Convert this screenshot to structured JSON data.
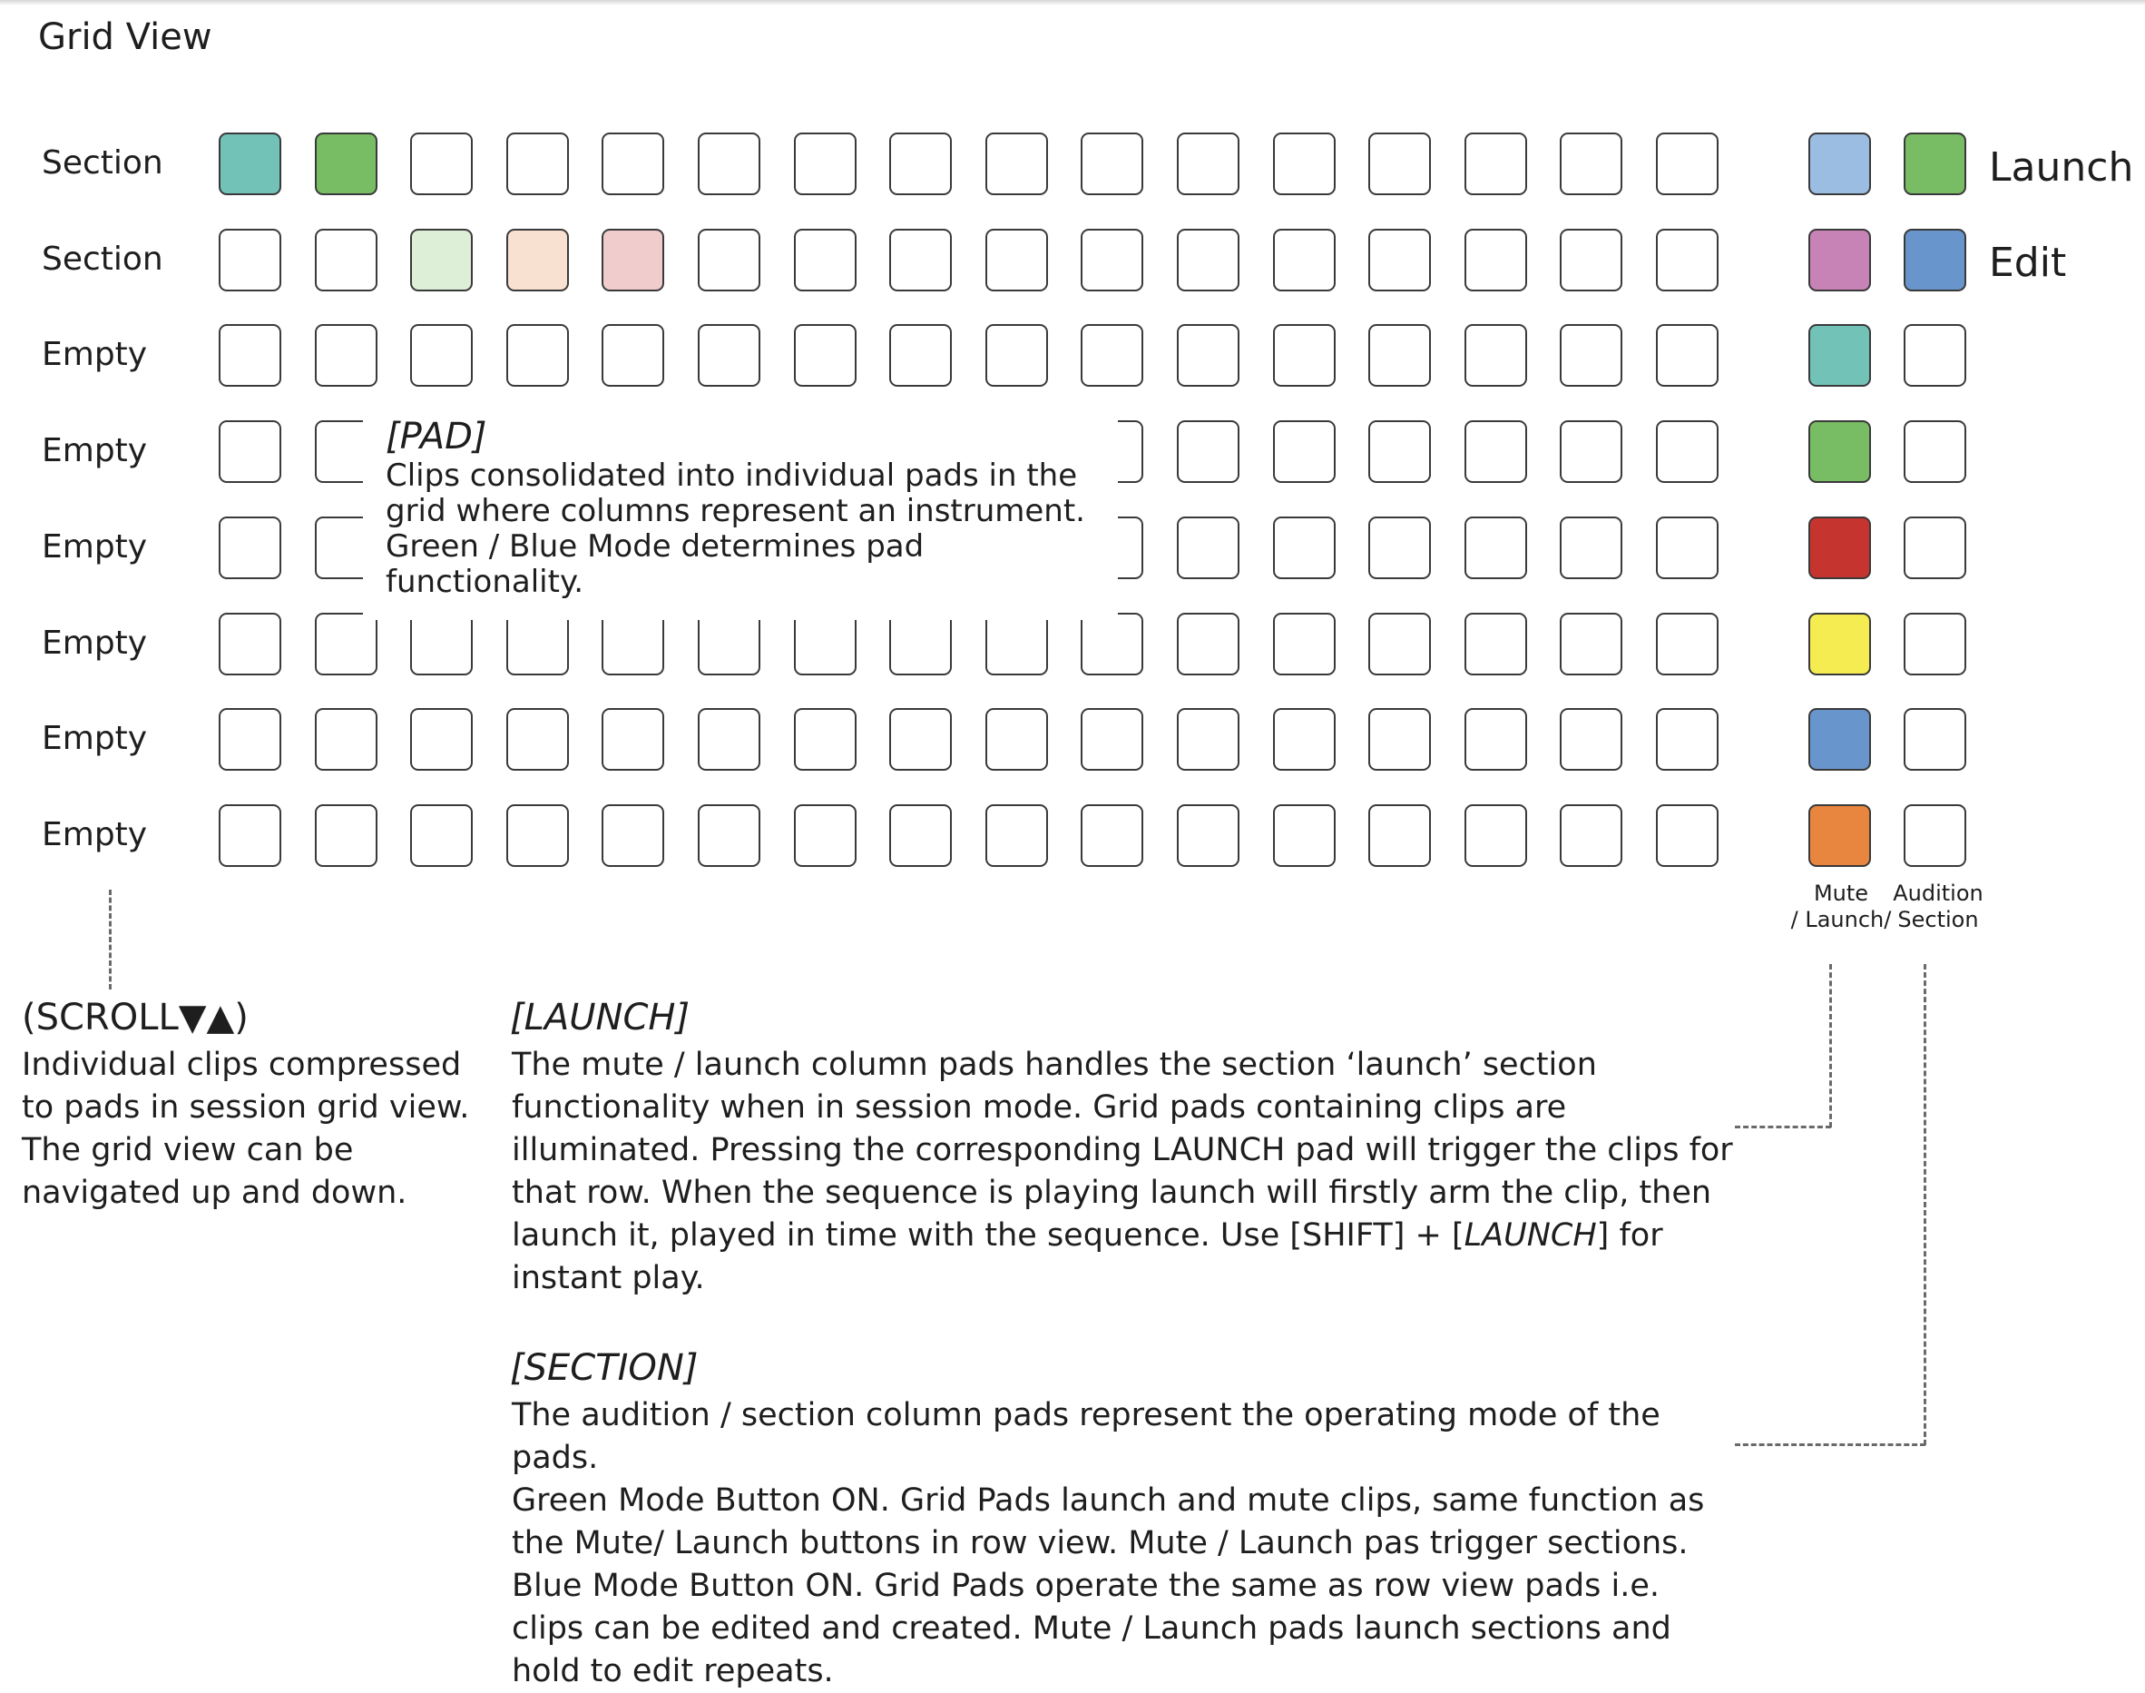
{
  "title": "Grid View",
  "rows": [
    {
      "label": "Section",
      "pads": [
        "#72c2b8",
        "#78bc64",
        "",
        "",
        "",
        "",
        "",
        "",
        "",
        "",
        "",
        "",
        "",
        "",
        "",
        ""
      ],
      "mute_launch": "#9bbde2",
      "audition_section": "#78bc64"
    },
    {
      "label": "Section",
      "pads": [
        "",
        "",
        "#deefd8",
        "#f9e1d2",
        "#f1cccd",
        "",
        "",
        "",
        "",
        "",
        "",
        "",
        "",
        "",
        "",
        ""
      ],
      "mute_launch": "#c783b5",
      "audition_section": "#6795cc"
    },
    {
      "label": "Empty",
      "pads": [
        "",
        "",
        "",
        "",
        "",
        "",
        "",
        "",
        "",
        "",
        "",
        "",
        "",
        "",
        "",
        ""
      ],
      "mute_launch": "#72c2b8",
      "audition_section": ""
    },
    {
      "label": "Empty",
      "pads": [
        "",
        "",
        "",
        "",
        "",
        "",
        "",
        "",
        "",
        "",
        "",
        "",
        "",
        "",
        "",
        ""
      ],
      "mute_launch": "#78bc64",
      "audition_section": ""
    },
    {
      "label": "Empty",
      "pads": [
        "",
        "",
        "",
        "",
        "",
        "",
        "",
        "",
        "",
        "",
        "",
        "",
        "",
        "",
        "",
        ""
      ],
      "mute_launch": "#c6342f",
      "audition_section": ""
    },
    {
      "label": "Empty",
      "pads": [
        "",
        "",
        "",
        "",
        "",
        "",
        "",
        "",
        "",
        "",
        "",
        "",
        "",
        "",
        "",
        ""
      ],
      "mute_launch": "#f5ec51",
      "audition_section": ""
    },
    {
      "label": "Empty",
      "pads": [
        "",
        "",
        "",
        "",
        "",
        "",
        "",
        "",
        "",
        "",
        "",
        "",
        "",
        "",
        "",
        ""
      ],
      "mute_launch": "#6795cc",
      "audition_section": ""
    },
    {
      "label": "Empty",
      "pads": [
        "",
        "",
        "",
        "",
        "",
        "",
        "",
        "",
        "",
        "",
        "",
        "",
        "",
        "",
        "",
        ""
      ],
      "mute_launch": "#e8853f",
      "audition_section": ""
    }
  ],
  "side_labels": {
    "launch": "Launch",
    "edit": "Edit"
  },
  "column_labels": {
    "mute_launch": [
      "Mute",
      "/ Launch/"
    ],
    "audition_section": [
      "Audition",
      "Section"
    ]
  },
  "pad_callout": {
    "heading": "[PAD]",
    "body": "Clips consolidated into individual pads in the grid where columns represent an instrument. Green / Blue Mode determines pad functionality."
  },
  "scroll_note": {
    "heading": "(SCROLL▼▲)",
    "body": "Individual clips compressed to pads in session grid view. The grid view can be navigated up and down."
  },
  "launch_note": {
    "heading": "[LAUNCH]",
    "body_pre": "The mute / launch column pads handles the section ‘launch’ section functionality when in session mode. Grid pads containing clips are illuminated. Pressing the corresponding LAUNCH pad will trigger the clips for that row. When the sequence is playing launch will firstly arm the clip, then launch it, played in time with the sequence. Use [SHIFT] + [",
    "body_em": "LAUNCH",
    "body_post": "] for instant play."
  },
  "section_note": {
    "heading": "[SECTION]",
    "lines": [
      "The audition / section column pads represent the operating mode of the pads.",
      "Green Mode Button ON. Grid Pads launch and mute clips, same function as the Mute/ Launch buttons in row view. Mute / Launch pas trigger sections.",
      "Blue Mode Button ON. Grid Pads operate the same as row view pads i.e. clips can be edited and created. Mute / Launch pads launch sections and hold to edit repeats."
    ]
  }
}
